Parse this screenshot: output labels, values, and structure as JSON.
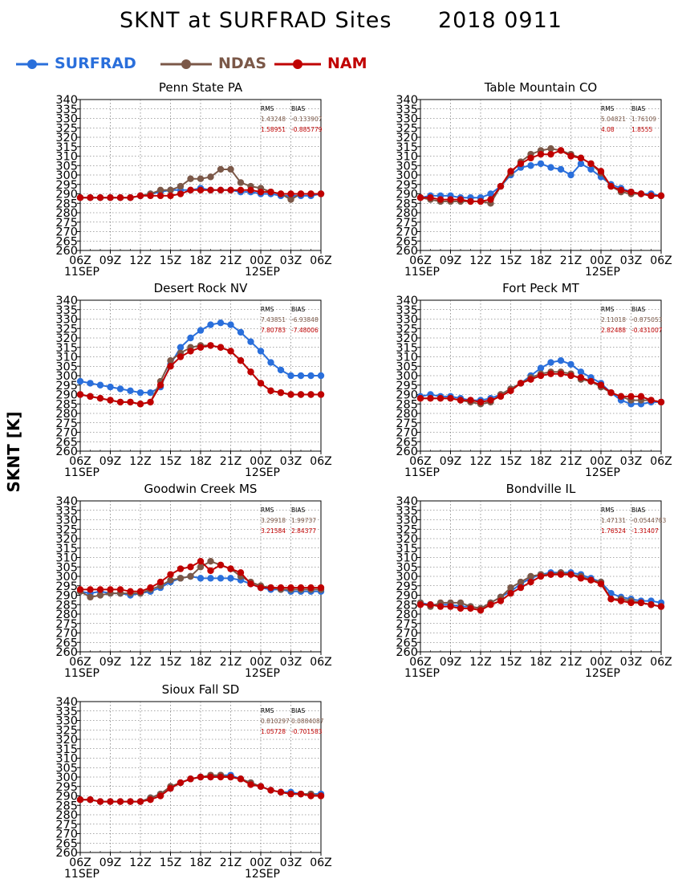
{
  "title": "SKNT at SURFRAD Sites      2018 0911",
  "ylabel": "SKNT [K]",
  "colors": {
    "SURFRAD": "#2a6fdb",
    "NDAS": "#7b5848",
    "NAM": "#c00000"
  },
  "legend": [
    {
      "name": "SURFRAD",
      "color": "#2a6fdb"
    },
    {
      "name": "NDAS",
      "color": "#7b5848"
    },
    {
      "name": "NAM",
      "color": "#c00000"
    }
  ],
  "stats_headers": {
    "rms": "RMS",
    "bias": "BIAS"
  },
  "chart_data": [
    {
      "type": "line",
      "title": "Penn State PA",
      "ylim": [
        260,
        340
      ],
      "yticks": [
        260,
        265,
        270,
        275,
        280,
        285,
        290,
        295,
        300,
        305,
        310,
        315,
        320,
        325,
        330,
        335,
        340
      ],
      "xticks": [
        "06Z",
        "09Z",
        "12Z",
        "15Z",
        "18Z",
        "21Z",
        "00Z",
        "03Z",
        "06Z"
      ],
      "date_labels": [
        "11SEP",
        "12SEP"
      ],
      "x_hours": [
        0,
        1,
        2,
        3,
        4,
        5,
        6,
        7,
        8,
        9,
        10,
        11,
        12,
        13,
        14,
        15,
        16,
        17,
        18,
        19,
        20,
        21,
        22,
        23,
        24
      ],
      "grid": true,
      "stats": {
        "ndas": [
          "1.43248",
          "-0.133907"
        ],
        "nam": [
          "1.58951",
          "-0.885779"
        ]
      },
      "series": [
        {
          "name": "SURFRAD",
          "values": [
            288,
            288,
            288,
            288,
            288,
            288,
            289,
            290,
            291,
            292,
            292,
            292,
            293,
            292,
            292,
            292,
            291,
            291,
            290,
            290,
            289,
            289,
            289,
            289,
            290
          ]
        },
        {
          "name": "NDAS",
          "values": [
            288,
            288,
            288,
            288,
            288,
            288,
            289,
            290,
            292,
            292,
            294,
            298,
            298,
            299,
            303,
            303,
            296,
            294,
            293,
            291,
            290,
            287,
            290,
            290,
            290
          ]
        },
        {
          "name": "NAM",
          "values": [
            288,
            288,
            288,
            288,
            288,
            288,
            289,
            289,
            289,
            289,
            290,
            292,
            292,
            292,
            292,
            292,
            292,
            292,
            291,
            291,
            290,
            290,
            290,
            290,
            290
          ]
        }
      ]
    },
    {
      "type": "line",
      "title": "Table Mountain CO",
      "ylim": [
        260,
        340
      ],
      "yticks": [
        260,
        265,
        270,
        275,
        280,
        285,
        290,
        295,
        300,
        305,
        310,
        315,
        320,
        325,
        330,
        335,
        340
      ],
      "xticks": [
        "06Z",
        "09Z",
        "12Z",
        "15Z",
        "18Z",
        "21Z",
        "00Z",
        "03Z",
        "06Z"
      ],
      "date_labels": [
        "11SEP",
        "12SEP"
      ],
      "x_hours": [
        0,
        1,
        2,
        3,
        4,
        5,
        6,
        7,
        8,
        9,
        10,
        11,
        12,
        13,
        14,
        15,
        16,
        17,
        18,
        19,
        20,
        21,
        22,
        23,
        24
      ],
      "grid": true,
      "stats": {
        "ndas": [
          "5.04821",
          "1.76109"
        ],
        "nam": [
          "4.08",
          "1.8555"
        ]
      },
      "series": [
        {
          "name": "SURFRAD",
          "values": [
            288,
            289,
            289,
            289,
            288,
            288,
            288,
            290,
            294,
            300,
            304,
            305,
            306,
            304,
            303,
            300,
            306,
            303,
            299,
            295,
            293,
            291,
            290,
            290,
            289
          ]
        },
        {
          "name": "NDAS",
          "values": [
            288,
            287,
            286,
            286,
            286,
            286,
            286,
            285,
            294,
            301,
            307,
            311,
            313,
            314,
            313,
            311,
            309,
            306,
            301,
            294,
            291,
            290,
            290,
            289,
            289
          ]
        },
        {
          "name": "NAM",
          "values": [
            288,
            288,
            287,
            287,
            287,
            286,
            286,
            287,
            294,
            302,
            306,
            309,
            311,
            311,
            313,
            310,
            309,
            306,
            302,
            294,
            292,
            291,
            290,
            289,
            289
          ]
        }
      ]
    },
    {
      "type": "line",
      "title": "Desert Rock NV",
      "ylim": [
        260,
        340
      ],
      "yticks": [
        260,
        265,
        270,
        275,
        280,
        285,
        290,
        295,
        300,
        305,
        310,
        315,
        320,
        325,
        330,
        335,
        340
      ],
      "xticks": [
        "06Z",
        "09Z",
        "12Z",
        "15Z",
        "18Z",
        "21Z",
        "00Z",
        "03Z",
        "06Z"
      ],
      "date_labels": [
        "11SEP",
        "12SEP"
      ],
      "x_hours": [
        0,
        1,
        2,
        3,
        4,
        5,
        6,
        7,
        8,
        9,
        10,
        11,
        12,
        13,
        14,
        15,
        16,
        17,
        18,
        19,
        20,
        21,
        22,
        23,
        24
      ],
      "grid": true,
      "stats": {
        "ndas": [
          "7.43851",
          "-6.93848"
        ],
        "nam": [
          "7.80783",
          "-7.48006"
        ]
      },
      "series": [
        {
          "name": "SURFRAD",
          "values": [
            297,
            296,
            295,
            294,
            293,
            292,
            291,
            291,
            294,
            306,
            315,
            320,
            324,
            327,
            328,
            327,
            323,
            318,
            313,
            307,
            303,
            300,
            300,
            300,
            300
          ]
        },
        {
          "name": "NDAS",
          "values": [
            290,
            289,
            288,
            287,
            286,
            286,
            285,
            286,
            297,
            308,
            312,
            315,
            316,
            316,
            315,
            313,
            308,
            302,
            296,
            292,
            291,
            290,
            290,
            290,
            290
          ]
        },
        {
          "name": "NAM",
          "values": [
            290,
            289,
            288,
            287,
            286,
            286,
            285,
            286,
            295,
            305,
            310,
            313,
            315,
            316,
            315,
            313,
            308,
            302,
            296,
            292,
            291,
            290,
            290,
            290,
            290
          ]
        }
      ]
    },
    {
      "type": "line",
      "title": "Fort Peck MT",
      "ylim": [
        260,
        340
      ],
      "yticks": [
        260,
        265,
        270,
        275,
        280,
        285,
        290,
        295,
        300,
        305,
        310,
        315,
        320,
        325,
        330,
        335,
        340
      ],
      "xticks": [
        "06Z",
        "09Z",
        "12Z",
        "15Z",
        "18Z",
        "21Z",
        "00Z",
        "03Z",
        "06Z"
      ],
      "date_labels": [
        "11SEP",
        "12SEP"
      ],
      "x_hours": [
        0,
        1,
        2,
        3,
        4,
        5,
        6,
        7,
        8,
        9,
        10,
        11,
        12,
        13,
        14,
        15,
        16,
        17,
        18,
        19,
        20,
        21,
        22,
        23,
        24
      ],
      "grid": true,
      "stats": {
        "ndas": [
          "2.11018",
          "-0.875053"
        ],
        "nam": [
          "2.82488",
          "-0.431007"
        ]
      },
      "series": [
        {
          "name": "SURFRAD",
          "values": [
            289,
            290,
            289,
            289,
            288,
            287,
            287,
            288,
            290,
            293,
            296,
            300,
            304,
            307,
            308,
            306,
            302,
            299,
            296,
            291,
            287,
            285,
            285,
            286,
            286
          ]
        },
        {
          "name": "NDAS",
          "values": [
            288,
            288,
            288,
            288,
            287,
            286,
            285,
            286,
            290,
            293,
            296,
            299,
            301,
            302,
            302,
            301,
            298,
            297,
            294,
            291,
            289,
            287,
            287,
            287,
            286
          ]
        },
        {
          "name": "NAM",
          "values": [
            288,
            288,
            288,
            288,
            287,
            287,
            286,
            287,
            289,
            292,
            296,
            298,
            300,
            301,
            301,
            300,
            299,
            297,
            295,
            291,
            289,
            289,
            289,
            287,
            286
          ]
        }
      ]
    },
    {
      "type": "line",
      "title": "Goodwin Creek MS",
      "ylim": [
        260,
        340
      ],
      "yticks": [
        260,
        265,
        270,
        275,
        280,
        285,
        290,
        295,
        300,
        305,
        310,
        315,
        320,
        325,
        330,
        335,
        340
      ],
      "xticks": [
        "06Z",
        "09Z",
        "12Z",
        "15Z",
        "18Z",
        "21Z",
        "00Z",
        "03Z",
        "06Z"
      ],
      "date_labels": [
        "11SEP",
        "12SEP"
      ],
      "x_hours": [
        0,
        1,
        2,
        3,
        4,
        5,
        6,
        7,
        8,
        9,
        10,
        11,
        12,
        13,
        14,
        15,
        16,
        17,
        18,
        19,
        20,
        21,
        22,
        23,
        24
      ],
      "grid": true,
      "stats": {
        "ndas": [
          "3.29918",
          "1.99737"
        ],
        "nam": [
          "3.21584",
          "2.84377"
        ]
      },
      "series": [
        {
          "name": "SURFRAD",
          "values": [
            292,
            291,
            292,
            291,
            291,
            290,
            291,
            292,
            294,
            297,
            299,
            300,
            299,
            299,
            299,
            299,
            298,
            296,
            294,
            293,
            293,
            292,
            292,
            292,
            292
          ]
        },
        {
          "name": "NDAS",
          "values": [
            292,
            289,
            290,
            291,
            291,
            291,
            291,
            293,
            295,
            298,
            299,
            300,
            305,
            308,
            306,
            304,
            300,
            297,
            295,
            294,
            293,
            293,
            293,
            293,
            293
          ]
        },
        {
          "name": "NAM",
          "values": [
            293,
            293,
            293,
            293,
            293,
            292,
            292,
            294,
            297,
            301,
            304,
            305,
            308,
            303,
            306,
            304,
            302,
            296,
            294,
            294,
            294,
            294,
            294,
            294,
            294
          ]
        }
      ]
    },
    {
      "type": "line",
      "title": "Bondville IL",
      "ylim": [
        260,
        340
      ],
      "yticks": [
        260,
        265,
        270,
        275,
        280,
        285,
        290,
        295,
        300,
        305,
        310,
        315,
        320,
        325,
        330,
        335,
        340
      ],
      "xticks": [
        "06Z",
        "09Z",
        "12Z",
        "15Z",
        "18Z",
        "21Z",
        "00Z",
        "03Z",
        "06Z"
      ],
      "date_labels": [
        "11SEP",
        "12SEP"
      ],
      "x_hours": [
        0,
        1,
        2,
        3,
        4,
        5,
        6,
        7,
        8,
        9,
        10,
        11,
        12,
        13,
        14,
        15,
        16,
        17,
        18,
        19,
        20,
        21,
        22,
        23,
        24
      ],
      "grid": true,
      "stats": {
        "ndas": [
          "1.47131",
          "-0.0544783"
        ],
        "nam": [
          "1.76524",
          "-1.31407"
        ]
      },
      "series": [
        {
          "name": "SURFRAD",
          "values": [
            286,
            285,
            285,
            285,
            284,
            284,
            283,
            286,
            289,
            292,
            296,
            299,
            301,
            302,
            302,
            302,
            301,
            299,
            297,
            291,
            289,
            288,
            287,
            287,
            286
          ]
        },
        {
          "name": "NDAS",
          "values": [
            286,
            284,
            286,
            286,
            286,
            284,
            283,
            286,
            289,
            294,
            297,
            300,
            301,
            301,
            302,
            301,
            300,
            298,
            297,
            288,
            288,
            287,
            286,
            285,
            284
          ]
        },
        {
          "name": "NAM",
          "values": [
            285,
            285,
            284,
            284,
            283,
            283,
            282,
            285,
            287,
            291,
            294,
            297,
            300,
            301,
            301,
            301,
            299,
            298,
            296,
            288,
            287,
            286,
            286,
            285,
            284
          ]
        }
      ]
    },
    {
      "type": "line",
      "title": "Sioux Fall SD",
      "ylim": [
        260,
        340
      ],
      "yticks": [
        260,
        265,
        270,
        275,
        280,
        285,
        290,
        295,
        300,
        305,
        310,
        315,
        320,
        325,
        330,
        335,
        340
      ],
      "xticks": [
        "06Z",
        "09Z",
        "12Z",
        "15Z",
        "18Z",
        "21Z",
        "00Z",
        "03Z",
        "06Z"
      ],
      "date_labels": [
        "11SEP",
        "12SEP"
      ],
      "x_hours": [
        0,
        1,
        2,
        3,
        4,
        5,
        6,
        7,
        8,
        9,
        10,
        11,
        12,
        13,
        14,
        15,
        16,
        17,
        18,
        19,
        20,
        21,
        22,
        23,
        24
      ],
      "grid": true,
      "stats": {
        "ndas": [
          "0.810297",
          "0.0884087"
        ],
        "nam": [
          "1.05728",
          "-0.701583"
        ]
      },
      "series": [
        {
          "name": "SURFRAD",
          "values": [
            288,
            288,
            287,
            287,
            287,
            287,
            287,
            289,
            291,
            294,
            297,
            299,
            300,
            300,
            301,
            301,
            299,
            297,
            295,
            293,
            292,
            292,
            291,
            291,
            291
          ]
        },
        {
          "name": "NDAS",
          "values": [
            288,
            288,
            287,
            287,
            287,
            287,
            287,
            289,
            291,
            295,
            297,
            299,
            300,
            301,
            301,
            300,
            299,
            297,
            295,
            293,
            292,
            291,
            291,
            291,
            290
          ]
        },
        {
          "name": "NAM",
          "values": [
            288,
            288,
            287,
            287,
            287,
            287,
            287,
            288,
            290,
            294,
            297,
            299,
            300,
            300,
            300,
            300,
            299,
            296,
            295,
            293,
            292,
            291,
            291,
            290,
            290
          ]
        }
      ]
    }
  ]
}
